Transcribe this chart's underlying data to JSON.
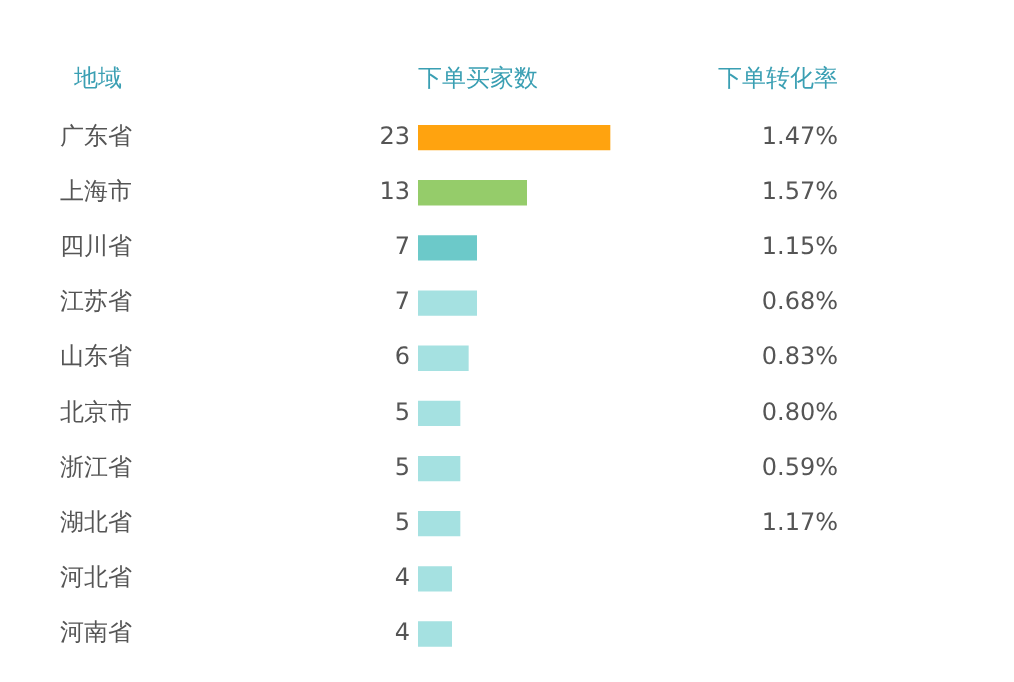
{
  "chart_data": {
    "type": "bar",
    "orientation": "horizontal",
    "ylabel": "地域",
    "xlabel": "下单买家数",
    "y2label": "下单转化率",
    "categories": [
      "广东省",
      "上海市",
      "四川省",
      "江苏省",
      "山东省",
      "北京市",
      "浙江省",
      "湖北省",
      "河北省",
      "河南省"
    ],
    "values": [
      23,
      13,
      7,
      7,
      6,
      5,
      5,
      5,
      4,
      4
    ],
    "colors": [
      "#ffa30f",
      "#95cc6a",
      "#6cc9c9",
      "#a5e1e1",
      "#a5e1e1",
      "#a5e1e1",
      "#a5e1e1",
      "#a5e1e1",
      "#a5e1e1",
      "#a5e1e1"
    ],
    "data_labels": true,
    "grid": false,
    "legend": false,
    "annotations": [
      "1.47%",
      "1.57%",
      "1.15%",
      "0.68%",
      "0.83%",
      "0.80%",
      "0.59%",
      "1.17%"
    ]
  }
}
